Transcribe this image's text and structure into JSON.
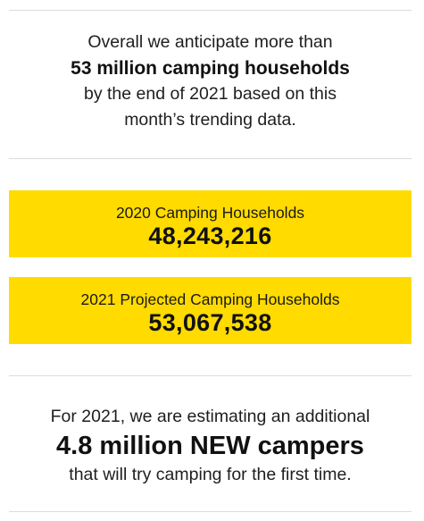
{
  "intro": {
    "line1": "Overall we anticipate more than",
    "highlight": "53 million camping households",
    "line3": "by the end of 2021 based on this",
    "line4": "month’s trending data."
  },
  "stats": [
    {
      "label": "2020 Camping Households",
      "value": "48,243,216"
    },
    {
      "label": "2021 Projected Camping Households",
      "value": "53,067,538"
    }
  ],
  "outro": {
    "line1": "For 2021, we are estimating an additional",
    "highlight": "4.8 million NEW campers",
    "line3": "that will try camping for the first time."
  },
  "colors": {
    "accent_yellow": "#FFDB00",
    "divider": "#DCDCDC",
    "text": "#1A1A1A"
  }
}
